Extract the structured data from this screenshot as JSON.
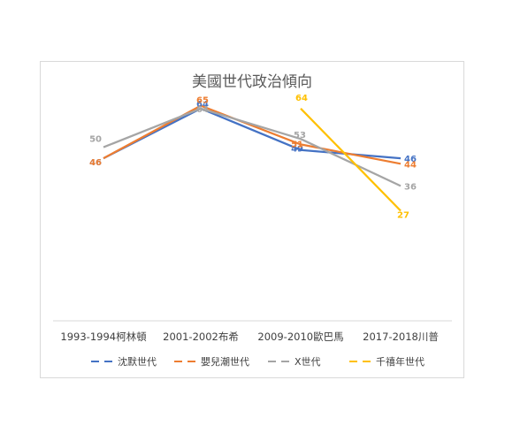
{
  "chart_data": {
    "type": "line",
    "title": "美國世代政治傾向",
    "xlabel": "",
    "ylabel": "",
    "categories": [
      "1993-1994柯林頓",
      "2001-2002布希",
      "2009-2010歐巴馬",
      "2017-2018川普"
    ],
    "ylim": [
      0,
      70
    ],
    "grid": false,
    "legend": "bottom",
    "series": [
      {
        "name": "沈默世代",
        "color": "#4472c4",
        "values": [
          46,
          64,
          49,
          46
        ]
      },
      {
        "name": "嬰兒潮世代",
        "color": "#ed7d31",
        "values": [
          46,
          65,
          51,
          44
        ]
      },
      {
        "name": "X世代",
        "color": "#a5a5a5",
        "values": [
          50,
          64,
          53,
          36
        ]
      },
      {
        "name": "千禧年世代",
        "color": "#ffc000",
        "values": [
          null,
          null,
          64,
          27
        ]
      }
    ]
  }
}
